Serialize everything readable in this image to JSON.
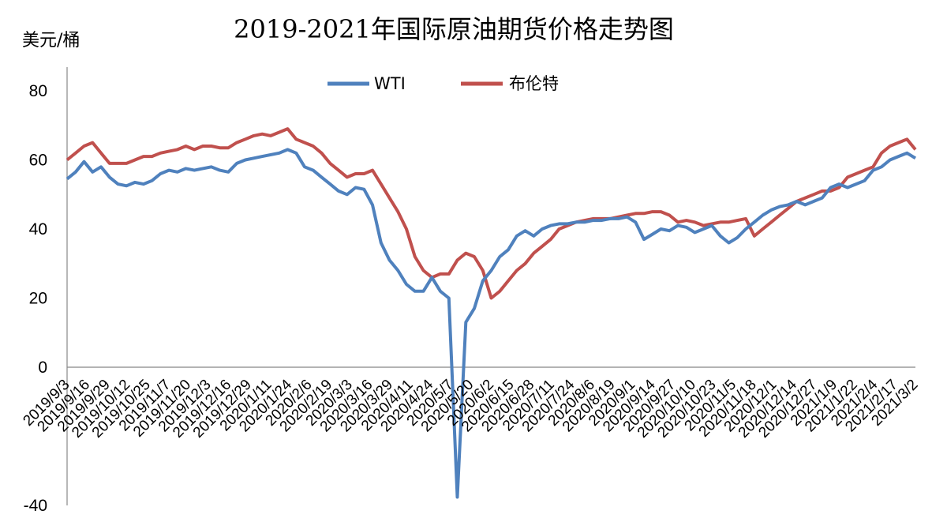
{
  "chart_data": {
    "type": "line",
    "title": "2019-2021年国际原油期货价格走势图",
    "ylabel": "美元/桶",
    "ylim": [
      -40,
      80
    ],
    "yticks": [
      80,
      60,
      40,
      20,
      0,
      -40
    ],
    "legend_position": "top-center",
    "grid": false,
    "x_tick_labels": [
      "2019/9/3",
      "2019/9/16",
      "2019/9/29",
      "2019/10/12",
      "2019/10/25",
      "2019/11/7",
      "2019/11/20",
      "2019/12/3",
      "2019/12/16",
      "2019/12/29",
      "2020/1/11",
      "2020/1/24",
      "2020/2/6",
      "2020/2/19",
      "2020/3/3",
      "2020/3/16",
      "2020/3/29",
      "2020/4/11",
      "2020/4/24",
      "2020/5/7",
      "2020/5/20",
      "2020/6/2",
      "2020/6/15",
      "2020/6/28",
      "2020/7/11",
      "2020/7/24",
      "2020/8/6",
      "2020/8/19",
      "2020/9/1",
      "2020/9/14",
      "2020/9/27",
      "2020/10/10",
      "2020/10/23",
      "2020/11/5",
      "2020/11/18",
      "2020/12/1",
      "2020/12/14",
      "2020/12/27",
      "2021/1/9",
      "2021/1/22",
      "2021/2/4",
      "2021/2/17",
      "2021/3/2"
    ],
    "series": [
      {
        "name": "WTI",
        "color": "#4f81bd",
        "values": [
          54.5,
          56.5,
          59.5,
          56.5,
          58,
          55,
          53,
          52.5,
          53.5,
          53,
          54,
          56,
          57,
          56.5,
          57.5,
          57,
          57.5,
          58,
          57,
          56.5,
          59,
          60,
          60.5,
          61,
          61.5,
          62,
          63,
          62,
          58,
          57,
          55,
          53,
          51,
          50,
          52,
          51.5,
          47,
          36,
          31,
          28,
          24,
          22,
          22,
          26,
          22,
          20,
          -37.6,
          13,
          17,
          25,
          28,
          32,
          34,
          38,
          39.5,
          38,
          40,
          41,
          41.5,
          41.5,
          42,
          42,
          42.5,
          42.5,
          43,
          43,
          43.5,
          42,
          37,
          38.5,
          40,
          39.5,
          41,
          40.5,
          39,
          40,
          41,
          38,
          36,
          37.5,
          40,
          42,
          44,
          45.5,
          46.5,
          47,
          48,
          47,
          48,
          49,
          52,
          53,
          52,
          53,
          54,
          57,
          58,
          60,
          61,
          62,
          60.5
        ]
      },
      {
        "name": "布伦特",
        "color": "#c0504d",
        "values": [
          60,
          62,
          64,
          65,
          62,
          59,
          59,
          59,
          60,
          61,
          61,
          62,
          62.5,
          63,
          64,
          63,
          64,
          64,
          63.5,
          63.5,
          65,
          66,
          67,
          67.5,
          67,
          68,
          69,
          66,
          65,
          64,
          62,
          59,
          57,
          55,
          56,
          56,
          57,
          53,
          49,
          45,
          40,
          32,
          28,
          26,
          27,
          27,
          31,
          33,
          32,
          28,
          20,
          22,
          25,
          28,
          30,
          33,
          35,
          37,
          40,
          41,
          42,
          42.5,
          43,
          43,
          43,
          43.5,
          44,
          44.5,
          44.5,
          45,
          45,
          44,
          42,
          42.5,
          42,
          41,
          41.5,
          42,
          42,
          42.5,
          43,
          38,
          40,
          42,
          44,
          46,
          48,
          49,
          50,
          51,
          51,
          52,
          55,
          56,
          57,
          58,
          62,
          64,
          65,
          66,
          63
        ]
      }
    ]
  }
}
